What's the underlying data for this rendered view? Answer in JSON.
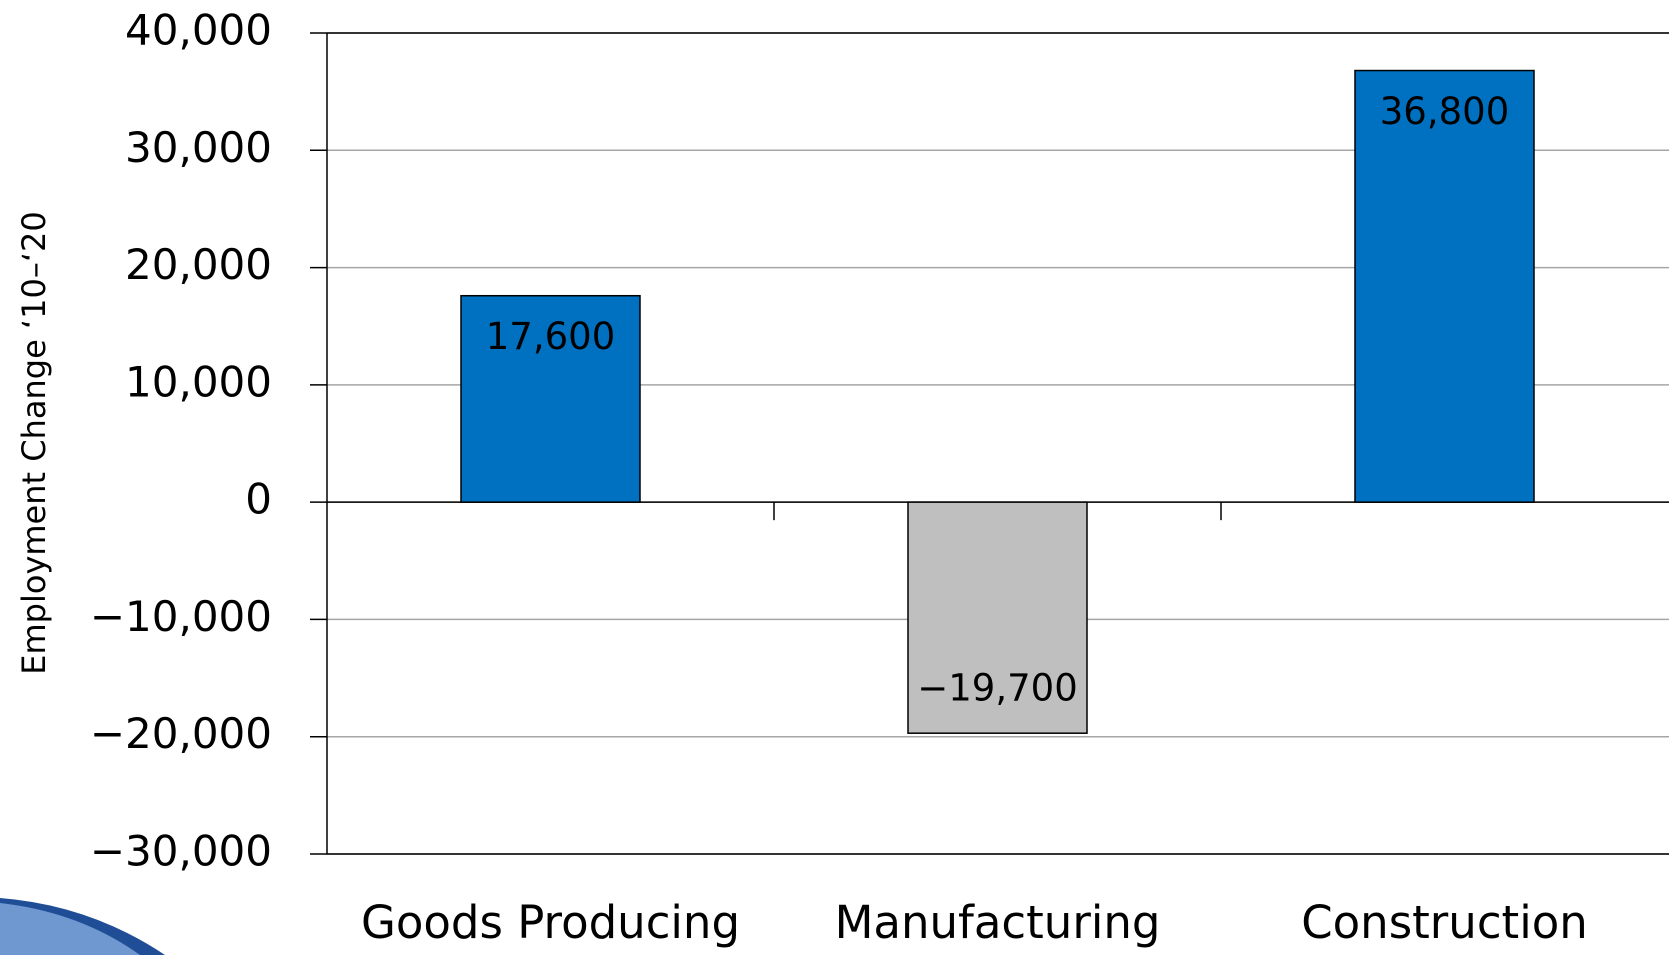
{
  "chart_data": {
    "type": "bar",
    "y_label": "Employment Change ‘10–‘20",
    "categories": [
      "Goods Producing",
      "Manufacturing",
      "Construction"
    ],
    "values": [
      17600,
      -19700,
      36800
    ],
    "value_labels": [
      "17,600",
      "−19,700",
      "36,800"
    ],
    "colors": [
      "#0070c0",
      "#bfbfbf",
      "#0070c0"
    ],
    "ylim": [
      -30000,
      40000
    ],
    "yticks": [
      {
        "value": -30000,
        "label": "−30,000"
      },
      {
        "value": -20000,
        "label": "−20,000"
      },
      {
        "value": -10000,
        "label": "−10,000"
      },
      0,
      {
        "value": 10000,
        "label": "10,000"
      },
      {
        "value": 20000,
        "label": "20,000"
      },
      {
        "value": 30000,
        "label": "30,000"
      },
      {
        "value": 40000,
        "label": "40,000"
      }
    ],
    "grid": true
  }
}
